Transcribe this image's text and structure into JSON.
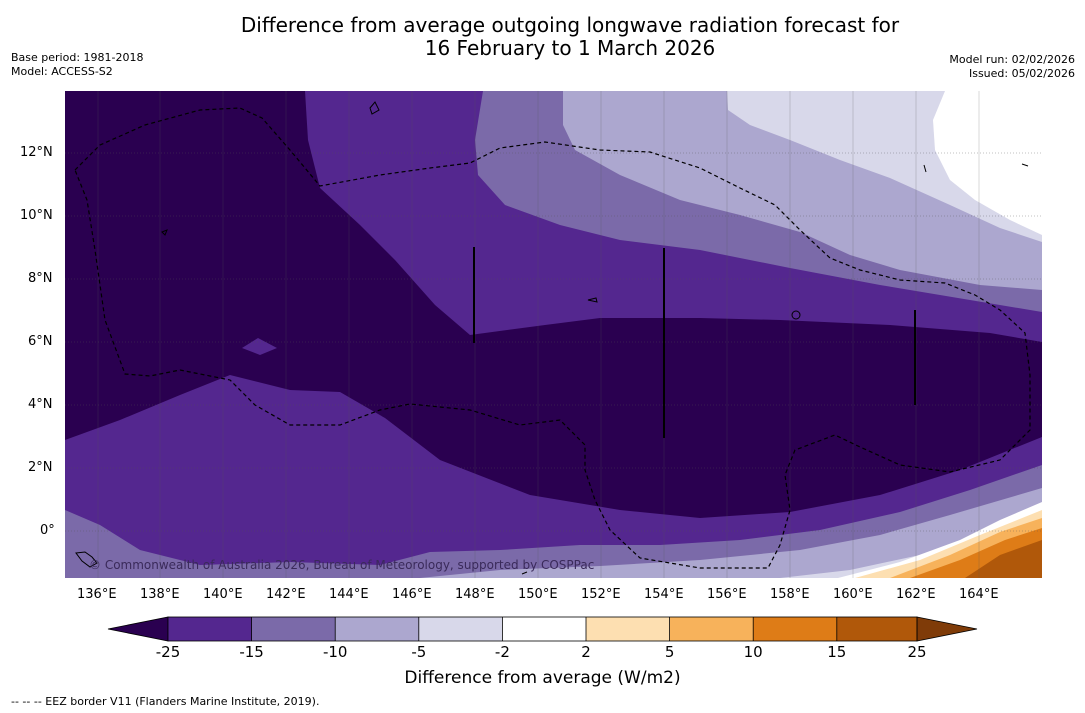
{
  "header": {
    "title_line1": "Difference from average outgoing longwave radiation forecast for",
    "title_line2": "16 February to 1 March 2026",
    "base_period": "Base period: 1981-2018",
    "model": "Model: ACCESS-S2",
    "model_run": "Model run: 02/02/2026",
    "issued": "Issued: 05/02/2026"
  },
  "map": {
    "lon_labels": [
      "136°E",
      "138°E",
      "140°E",
      "142°E",
      "144°E",
      "146°E",
      "148°E",
      "150°E",
      "152°E",
      "154°E",
      "156°E",
      "158°E",
      "160°E",
      "162°E",
      "164°E"
    ],
    "lat_labels": [
      "12°N",
      "10°N",
      "8°N",
      "6°N",
      "4°N",
      "2°N",
      "0°"
    ],
    "copyright": "© Commonwealth of Australia 2026, Bureau of Meteorology, supported by COSPPac"
  },
  "colorbar": {
    "tick_labels": [
      "-25",
      "-15",
      "-10",
      "-5",
      "-2",
      "2",
      "5",
      "10",
      "15",
      "25"
    ],
    "colors": [
      "#2a0050",
      "#54278f",
      "#7b6aa9",
      "#aca7cf",
      "#d8d8ea",
      "#ffffff",
      "#fddfb1",
      "#f7b25b",
      "#de7c17",
      "#b0580a"
    ],
    "extend_low_color": "#2a0050",
    "extend_high_color": "#7f3b08",
    "title": "Difference from average (W/m2)"
  },
  "footnote": "--  --  -- EEZ border V11 (Flanders Marine Institute, 2019)."
}
